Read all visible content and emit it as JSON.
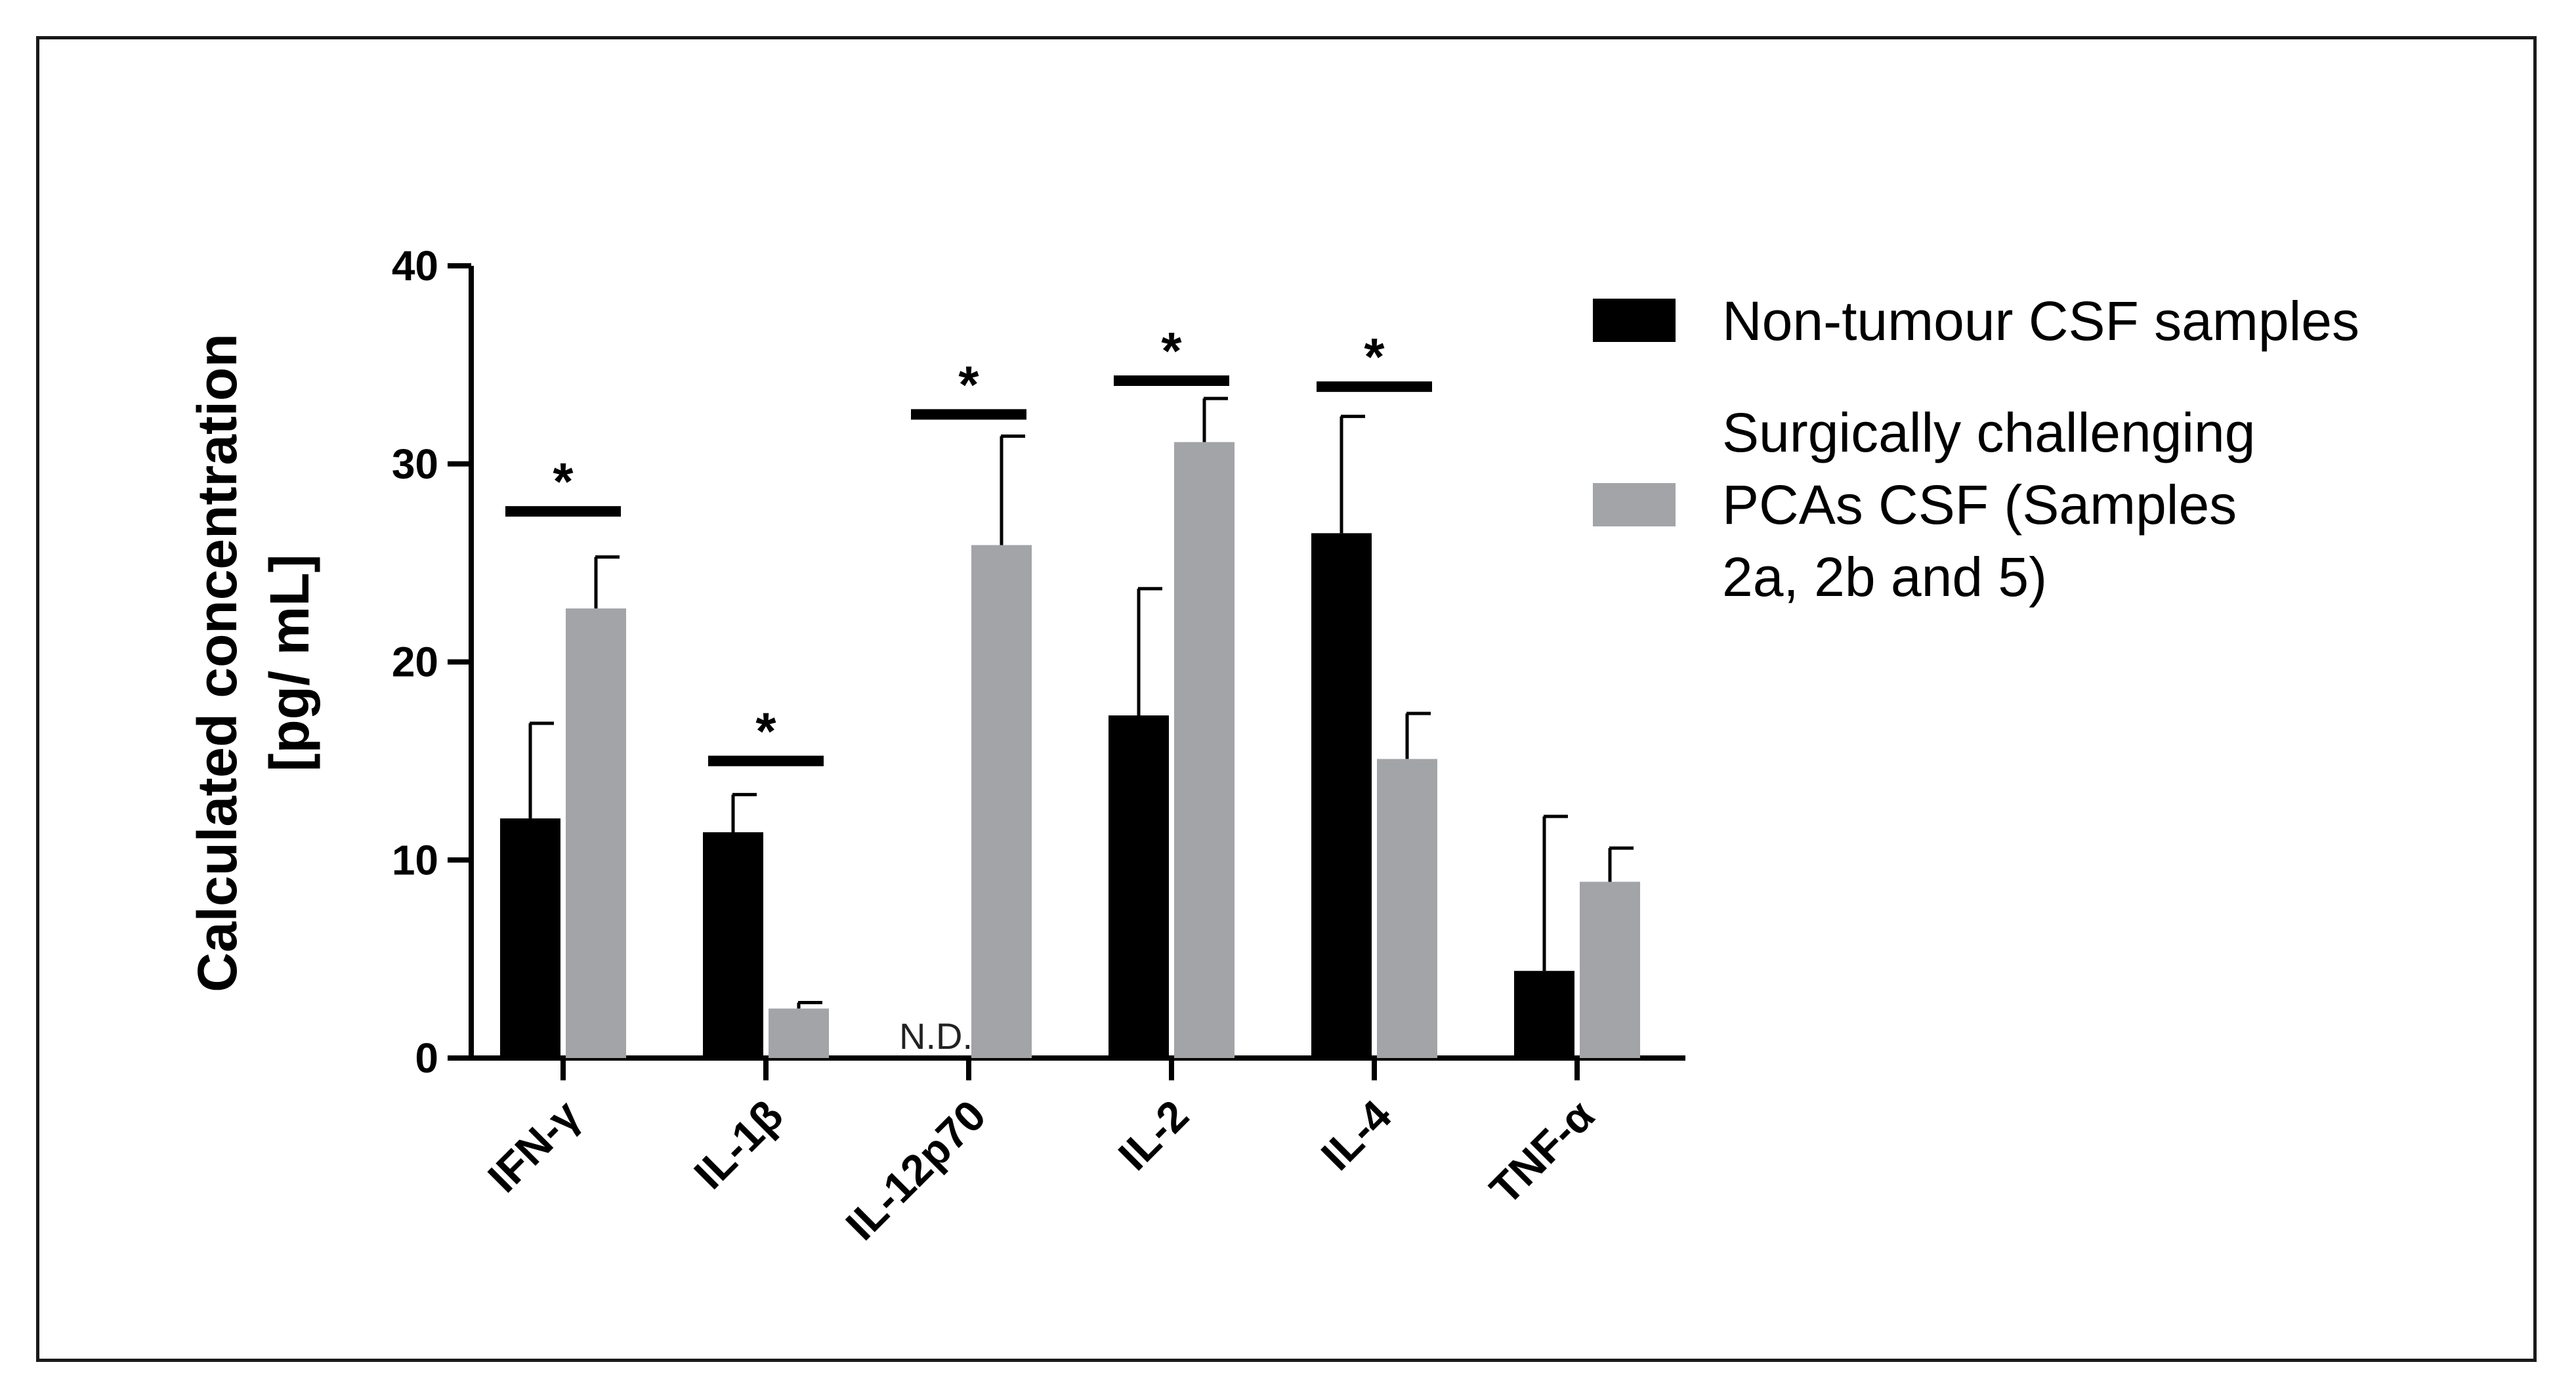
{
  "chart_data": {
    "type": "bar",
    "title": "",
    "xlabel": "",
    "ylabel_lines": [
      "Calculated concentration",
      "[pg/ mL]"
    ],
    "ylim": [
      0,
      40
    ],
    "yticks": [
      0,
      10,
      20,
      30,
      40
    ],
    "categories": [
      "IFN-γ",
      "IL-1β",
      "IL-12p70",
      "IL-2",
      "IL-4",
      "TNF-α"
    ],
    "series": [
      {
        "name": "Non-tumour CSF samples",
        "color": "#000000",
        "values": [
          12.1,
          11.4,
          0,
          17.3,
          26.5,
          4.4
        ],
        "errors": [
          4.8,
          1.9,
          0,
          6.4,
          5.9,
          7.8
        ]
      },
      {
        "name": "Surgically challenging PCAs CSF (Samples 2a, 2b and 5)",
        "legend_lines": [
          "Surgically challenging",
          "PCAs CSF (Samples",
          "2a, 2b and 5)"
        ],
        "color": "#a3a4a8",
        "values": [
          22.7,
          2.5,
          25.9,
          31.1,
          15.1,
          8.9
        ],
        "errors": [
          2.6,
          0.3,
          5.5,
          2.2,
          2.3,
          1.7
        ]
      }
    ],
    "annotations": {
      "nd": {
        "category_index": 2,
        "text": "N.D."
      },
      "significance": [
        {
          "category_index": 0,
          "level": 27.6,
          "symbol": "*"
        },
        {
          "category_index": 1,
          "level": 15.0,
          "symbol": "*"
        },
        {
          "category_index": 2,
          "level": 32.5,
          "symbol": "*"
        },
        {
          "category_index": 3,
          "level": 34.2,
          "symbol": "*"
        },
        {
          "category_index": 4,
          "level": 33.9,
          "symbol": "*"
        }
      ]
    },
    "legend_position": "right",
    "grid": false
  }
}
